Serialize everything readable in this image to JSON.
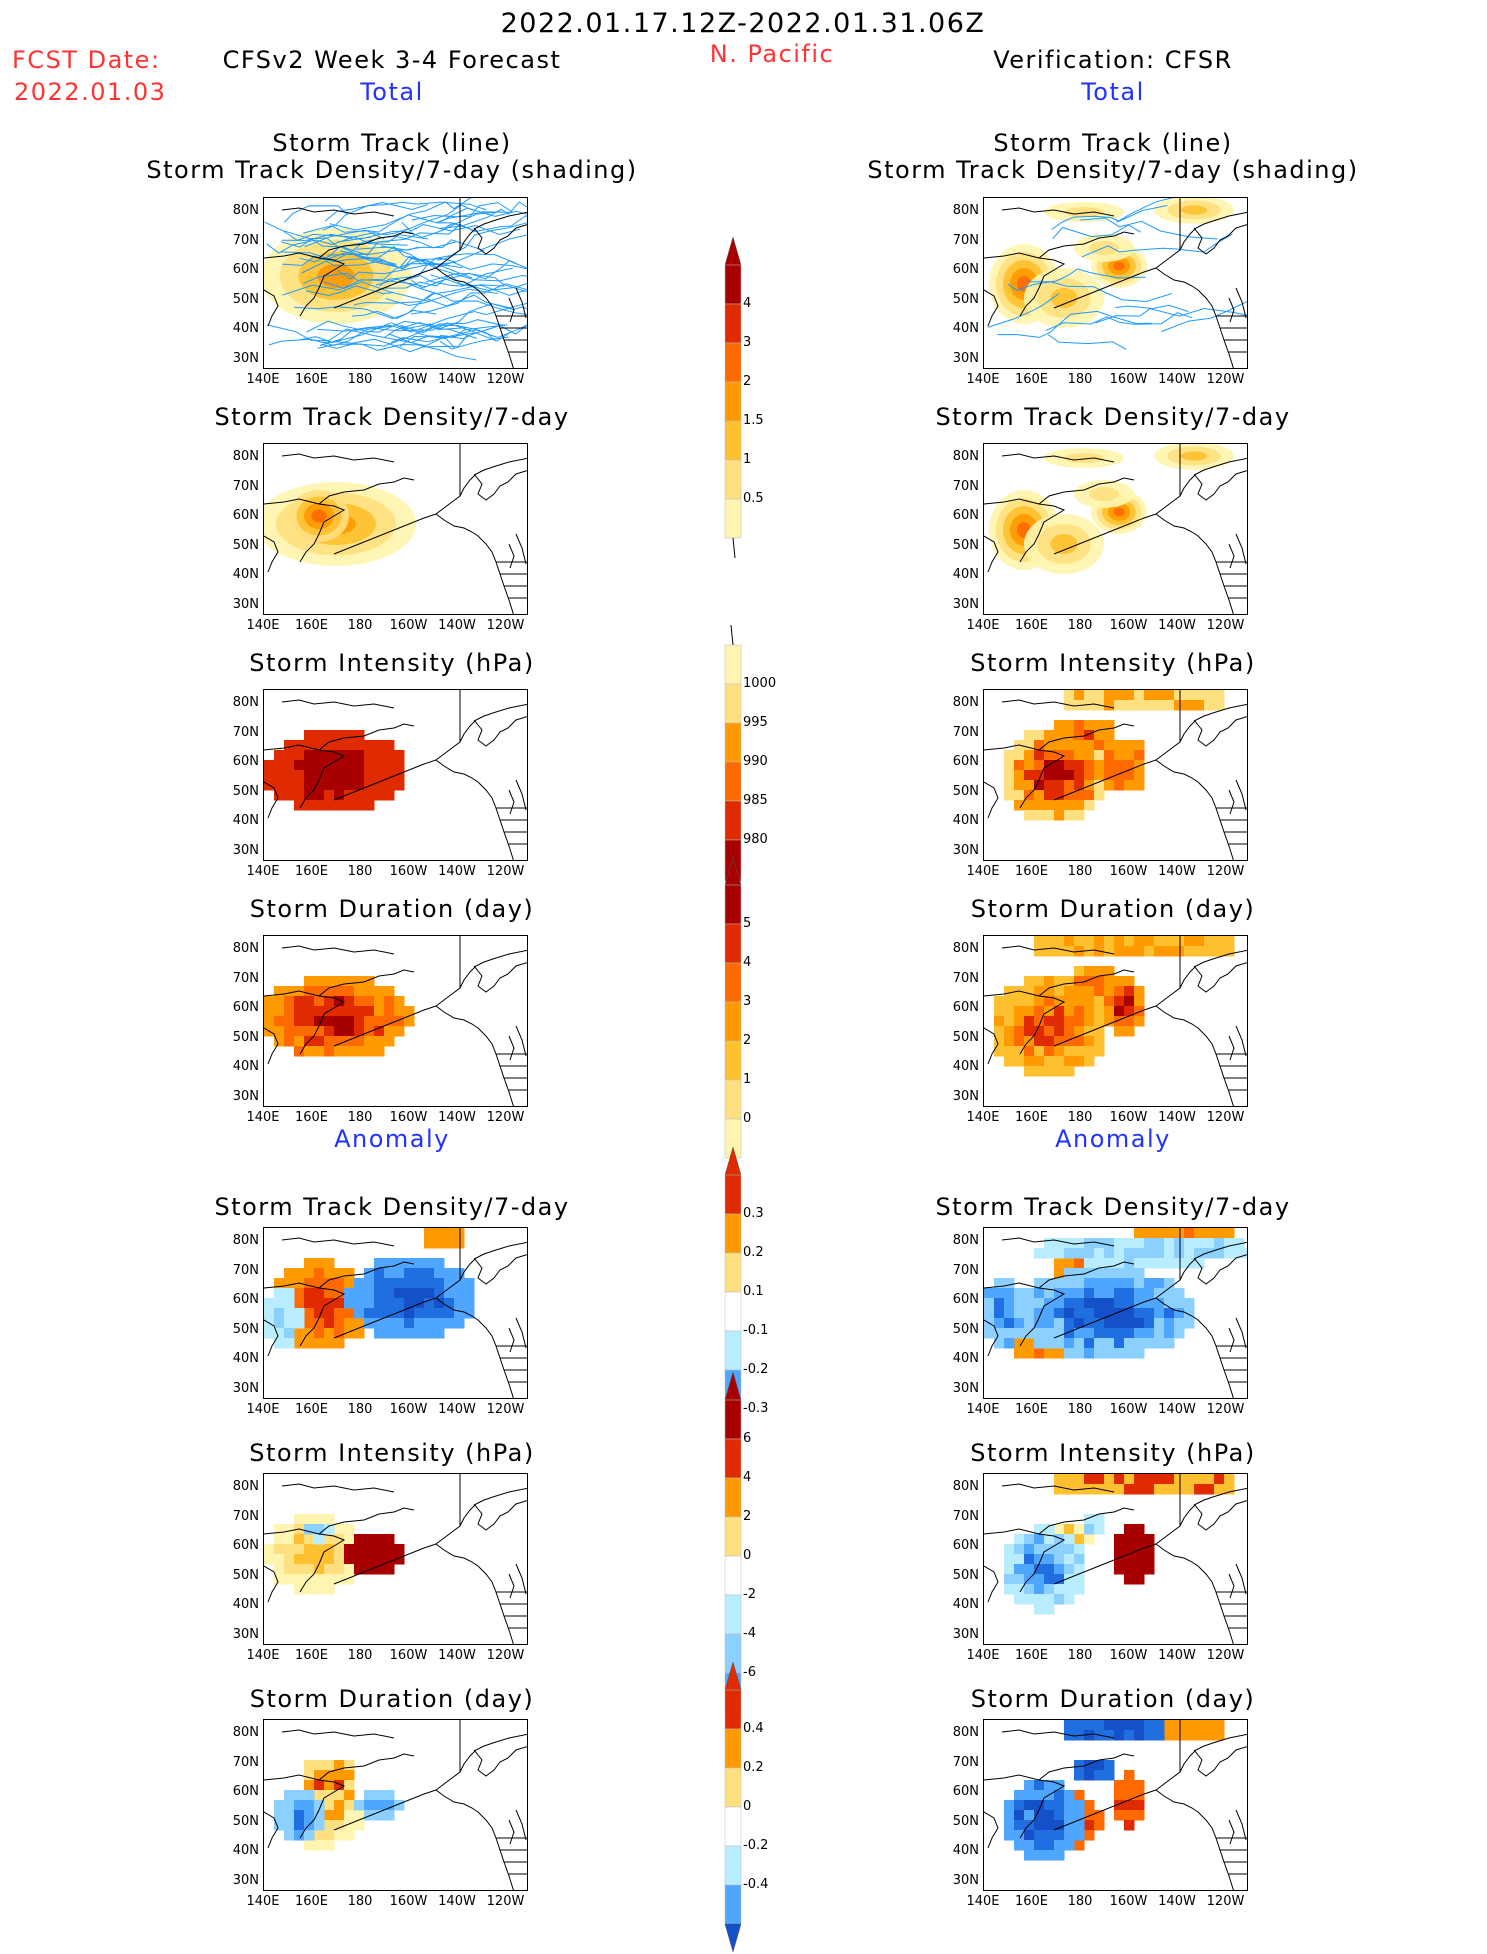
{
  "header": {
    "period": "2022.01.17.12Z-2022.01.31.06Z",
    "fcst_label": "FCST Date:",
    "fcst_date": "2022.01.03",
    "left_title": "CFSv2 Week 3-4 Forecast",
    "region": "N. Pacific",
    "right_title": "Verification: CFSR",
    "left_total": "Total",
    "right_total": "Total",
    "left_anomaly": "Anomaly",
    "right_anomaly": "Anomaly"
  },
  "axes": {
    "lat_labels": [
      "80N",
      "70N",
      "60N",
      "50N",
      "40N",
      "30N"
    ],
    "lon_labels": [
      "140E",
      "160E",
      "180",
      "160W",
      "140W",
      "120W"
    ]
  },
  "panels": {
    "track_title_1": "Storm Track (line)",
    "track_title_2": "Storm Track Density/7-day (shading)",
    "density": "Storm Track Density/7-day",
    "intensity": "Storm Intensity (hPa)",
    "duration": "Storm Duration (day)"
  },
  "colorbars": {
    "density_total": [
      "4",
      "3",
      "2",
      "1.5",
      "1",
      "0.5"
    ],
    "intensity_total": [
      "1000",
      "995",
      "990",
      "985",
      "980"
    ],
    "duration_total": [
      "5",
      "4",
      "3",
      "2",
      "1",
      "0"
    ],
    "density_anom": [
      "0.3",
      "0.2",
      "0.1",
      "-0.1",
      "-0.2",
      "-0.3"
    ],
    "intensity_anom": [
      "6",
      "4",
      "2",
      "0",
      "-2",
      "-4",
      "-6"
    ],
    "duration_anom": [
      "0.4",
      "0.2",
      "0",
      "-0.2",
      "-0.4"
    ]
  },
  "colors": {
    "warm": [
      "#fff5b0",
      "#ffe080",
      "#ffc030",
      "#ff9a00",
      "#ff6a00",
      "#e02a00",
      "#a80000"
    ],
    "cool": [
      "#ffffff",
      "#b8ecff",
      "#8cd0ff",
      "#4fa6ff",
      "#1f6fe0",
      "#1450c8"
    ],
    "track_line": "#1e9bff"
  },
  "chart_data": [
    {
      "type": "heatmap",
      "panel": "forecast-total-track",
      "title": "Storm Track (line) / Storm Track Density/7-day (shading)",
      "region": "N. Pacific",
      "lon_range": [
        "140E",
        "120W"
      ],
      "lat_range": [
        "25N",
        "85N"
      ],
      "max_value": 4
    },
    {
      "type": "heatmap",
      "panel": "verification-total-track",
      "title": "Storm Track (line) / Storm Track Density/7-day (shading)",
      "lon_range": [
        "140E",
        "120W"
      ],
      "lat_range": [
        "25N",
        "85N"
      ],
      "max_value": 4
    },
    {
      "type": "heatmap",
      "panel": "forecast-total-density",
      "title": "Storm Track Density/7-day",
      "levels": [
        0.5,
        1,
        1.5,
        2,
        3,
        4
      ]
    },
    {
      "type": "heatmap",
      "panel": "verification-total-density",
      "title": "Storm Track Density/7-day",
      "levels": [
        0.5,
        1,
        1.5,
        2,
        3,
        4
      ]
    },
    {
      "type": "heatmap",
      "panel": "forecast-total-intensity",
      "title": "Storm Intensity (hPa)",
      "levels": [
        980,
        985,
        990,
        995,
        1000
      ]
    },
    {
      "type": "heatmap",
      "panel": "verification-total-intensity",
      "title": "Storm Intensity (hPa)",
      "levels": [
        980,
        985,
        990,
        995,
        1000
      ]
    },
    {
      "type": "heatmap",
      "panel": "forecast-total-duration",
      "title": "Storm Duration (day)",
      "levels": [
        0,
        1,
        2,
        3,
        4,
        5
      ]
    },
    {
      "type": "heatmap",
      "panel": "verification-total-duration",
      "title": "Storm Duration (day)",
      "levels": [
        0,
        1,
        2,
        3,
        4,
        5
      ]
    },
    {
      "type": "heatmap",
      "panel": "forecast-anom-density",
      "title": "Storm Track Density/7-day",
      "levels": [
        -0.3,
        -0.2,
        -0.1,
        0.1,
        0.2,
        0.3
      ]
    },
    {
      "type": "heatmap",
      "panel": "verification-anom-density",
      "title": "Storm Track Density/7-day",
      "levels": [
        -0.3,
        -0.2,
        -0.1,
        0.1,
        0.2,
        0.3
      ]
    },
    {
      "type": "heatmap",
      "panel": "forecast-anom-intensity",
      "title": "Storm Intensity (hPa)",
      "levels": [
        -6,
        -4,
        -2,
        0,
        2,
        4,
        6
      ]
    },
    {
      "type": "heatmap",
      "panel": "verification-anom-intensity",
      "title": "Storm Intensity (hPa)",
      "levels": [
        -6,
        -4,
        -2,
        0,
        2,
        4,
        6
      ]
    },
    {
      "type": "heatmap",
      "panel": "forecast-anom-duration",
      "title": "Storm Duration (day)",
      "levels": [
        -0.4,
        -0.2,
        0,
        0.2,
        0.4
      ]
    },
    {
      "type": "heatmap",
      "panel": "verification-anom-duration",
      "title": "Storm Duration (day)",
      "levels": [
        -0.4,
        -0.2,
        0,
        0.2,
        0.4
      ]
    }
  ]
}
